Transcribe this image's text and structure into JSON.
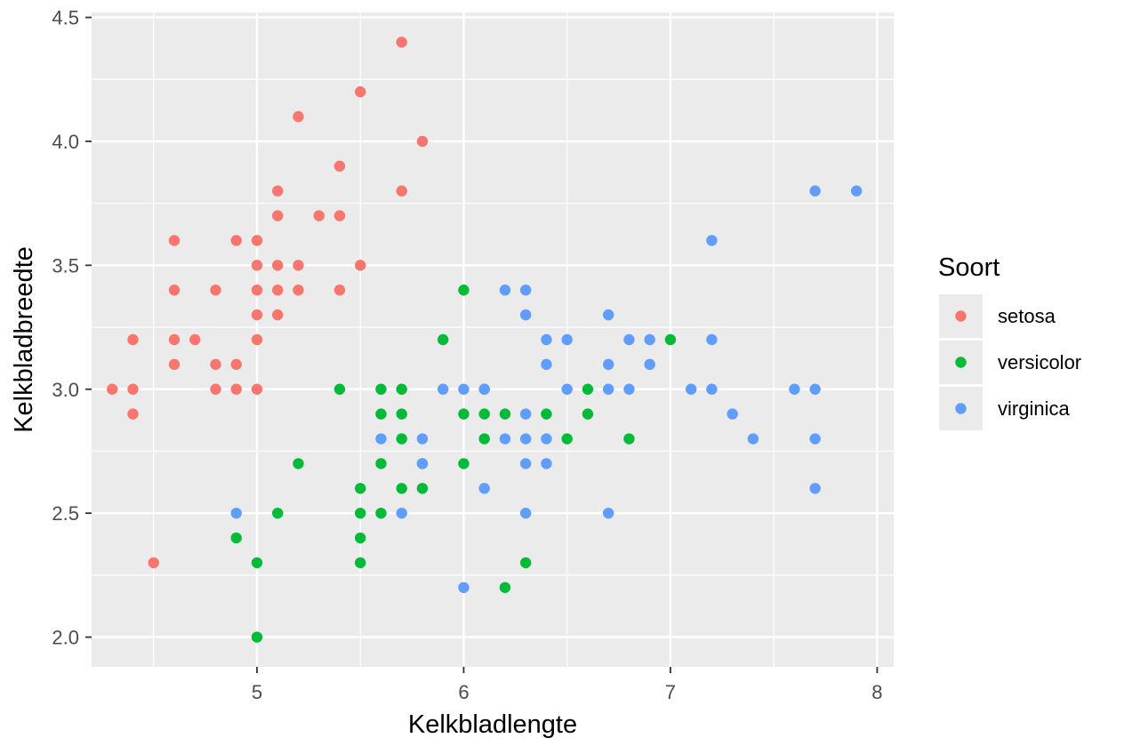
{
  "chart_data": {
    "type": "scatter",
    "xlabel": "Kelkbladlengte",
    "ylabel": "Kelkbladbreedte",
    "xlim": [
      4.2,
      8.08
    ],
    "ylim": [
      1.88,
      4.52
    ],
    "x_ticks": [
      5,
      6,
      7,
      8
    ],
    "x_tick_labels": [
      "5",
      "6",
      "7",
      "8"
    ],
    "y_ticks": [
      2.0,
      2.5,
      3.0,
      3.5,
      4.0,
      4.5
    ],
    "y_tick_labels": [
      "2.0",
      "2.5",
      "3.0",
      "3.5",
      "4.0",
      "4.5"
    ],
    "grid": true,
    "legend": {
      "title": "Soort",
      "position": "right"
    },
    "series": [
      {
        "name": "setosa",
        "color": "#F8766D",
        "points": [
          [
            4.3,
            3.0
          ],
          [
            4.4,
            3.2
          ],
          [
            4.4,
            3.0
          ],
          [
            4.4,
            2.9
          ],
          [
            4.5,
            2.3
          ],
          [
            4.6,
            3.6
          ],
          [
            4.6,
            3.4
          ],
          [
            4.6,
            3.2
          ],
          [
            4.6,
            3.1
          ],
          [
            4.7,
            3.2
          ],
          [
            4.8,
            3.4
          ],
          [
            4.8,
            3.1
          ],
          [
            4.8,
            3.0
          ],
          [
            4.9,
            3.6
          ],
          [
            4.9,
            3.1
          ],
          [
            4.9,
            3.0
          ],
          [
            5.0,
            3.6
          ],
          [
            5.0,
            3.5
          ],
          [
            5.0,
            3.4
          ],
          [
            5.0,
            3.3
          ],
          [
            5.0,
            3.2
          ],
          [
            5.0,
            3.0
          ],
          [
            5.1,
            3.8
          ],
          [
            5.1,
            3.7
          ],
          [
            5.1,
            3.5
          ],
          [
            5.1,
            3.4
          ],
          [
            5.1,
            3.3
          ],
          [
            5.2,
            4.1
          ],
          [
            5.2,
            3.5
          ],
          [
            5.2,
            3.4
          ],
          [
            5.3,
            3.7
          ],
          [
            5.4,
            3.9
          ],
          [
            5.4,
            3.7
          ],
          [
            5.4,
            3.4
          ],
          [
            5.5,
            4.2
          ],
          [
            5.5,
            3.5
          ],
          [
            5.7,
            4.4
          ],
          [
            5.7,
            3.8
          ],
          [
            5.8,
            4.0
          ]
        ]
      },
      {
        "name": "versicolor",
        "color": "#00BA38",
        "points": [
          [
            4.9,
            2.4
          ],
          [
            5.0,
            2.3
          ],
          [
            5.0,
            2.0
          ],
          [
            5.1,
            2.5
          ],
          [
            5.2,
            2.7
          ],
          [
            5.4,
            3.0
          ],
          [
            5.5,
            2.6
          ],
          [
            5.5,
            2.5
          ],
          [
            5.5,
            2.4
          ],
          [
            5.5,
            2.3
          ],
          [
            5.6,
            3.0
          ],
          [
            5.6,
            2.9
          ],
          [
            5.6,
            2.7
          ],
          [
            5.6,
            2.5
          ],
          [
            5.7,
            3.0
          ],
          [
            5.7,
            2.9
          ],
          [
            5.7,
            2.8
          ],
          [
            5.7,
            2.6
          ],
          [
            5.8,
            2.7
          ],
          [
            5.8,
            2.6
          ],
          [
            5.9,
            3.2
          ],
          [
            6.0,
            3.4
          ],
          [
            6.0,
            2.9
          ],
          [
            6.0,
            2.7
          ],
          [
            6.1,
            3.0
          ],
          [
            6.1,
            2.9
          ],
          [
            6.1,
            2.8
          ],
          [
            6.2,
            2.9
          ],
          [
            6.2,
            2.2
          ],
          [
            6.3,
            2.3
          ],
          [
            6.4,
            2.9
          ],
          [
            6.5,
            2.8
          ],
          [
            6.6,
            3.0
          ],
          [
            6.6,
            2.9
          ],
          [
            6.8,
            2.8
          ],
          [
            7.0,
            3.2
          ]
        ]
      },
      {
        "name": "virginica",
        "color": "#619CFF",
        "points": [
          [
            4.9,
            2.5
          ],
          [
            5.6,
            2.8
          ],
          [
            5.7,
            2.5
          ],
          [
            5.8,
            2.8
          ],
          [
            5.8,
            2.7
          ],
          [
            5.9,
            3.0
          ],
          [
            6.0,
            3.0
          ],
          [
            6.0,
            2.2
          ],
          [
            6.1,
            3.0
          ],
          [
            6.1,
            2.6
          ],
          [
            6.2,
            3.4
          ],
          [
            6.2,
            2.8
          ],
          [
            6.3,
            3.4
          ],
          [
            6.3,
            3.3
          ],
          [
            6.3,
            2.9
          ],
          [
            6.3,
            2.8
          ],
          [
            6.3,
            2.7
          ],
          [
            6.3,
            2.5
          ],
          [
            6.4,
            3.2
          ],
          [
            6.4,
            3.1
          ],
          [
            6.4,
            2.8
          ],
          [
            6.4,
            2.7
          ],
          [
            6.5,
            3.2
          ],
          [
            6.5,
            3.0
          ],
          [
            6.7,
            3.3
          ],
          [
            6.7,
            3.1
          ],
          [
            6.7,
            3.0
          ],
          [
            6.7,
            2.5
          ],
          [
            6.8,
            3.2
          ],
          [
            6.8,
            3.0
          ],
          [
            6.9,
            3.2
          ],
          [
            6.9,
            3.1
          ],
          [
            7.1,
            3.0
          ],
          [
            7.2,
            3.6
          ],
          [
            7.2,
            3.2
          ],
          [
            7.2,
            3.0
          ],
          [
            7.3,
            2.9
          ],
          [
            7.4,
            2.8
          ],
          [
            7.6,
            3.0
          ],
          [
            7.7,
            3.8
          ],
          [
            7.7,
            3.0
          ],
          [
            7.7,
            2.8
          ],
          [
            7.7,
            2.6
          ],
          [
            7.9,
            3.8
          ]
        ]
      }
    ]
  }
}
